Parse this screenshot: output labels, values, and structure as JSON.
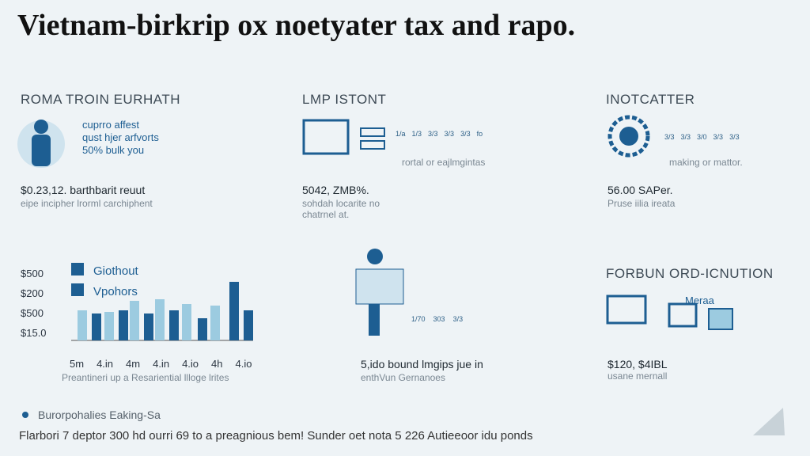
{
  "header": {
    "title": "Vietnam-birkrip ox noetyater tax and rapo."
  },
  "panels": [
    {
      "heading": "ROMA TROIN EURHATH",
      "lines": [
        "cuprro affest",
        "qust hjer arfvorts",
        "50% bulk you"
      ],
      "stat": "$0.23,12. barthbarit reuut",
      "sub": "eipe incipher lrorml carchiphent"
    },
    {
      "heading": "LMP ISTONT",
      "tags": [
        "1/a",
        "1/3",
        "3/3",
        "3/3",
        "3/3",
        "fo"
      ],
      "caption": "rortal or eajlmgintas",
      "stat": "5042, ZMB%.",
      "sub": "sohdah locarite no chatrnel at."
    },
    {
      "heading": "INOTCATTER",
      "tags": [
        "3/3",
        "3/3",
        "3/0",
        "3/3",
        "3/3"
      ],
      "caption": "making or mattor.",
      "stat": "56.00 SAPer.",
      "sub": "Pruse iilia ireata"
    },
    {
      "legend": [
        "Giothout",
        "Vpohors"
      ],
      "ylabels": [
        "$500",
        "$200",
        "$500",
        "$15.0"
      ],
      "xlabels": [
        "5m",
        "4.in",
        "4m",
        "4.in",
        "4.io",
        "4h",
        "4.io"
      ],
      "caption": "Preantineri up a Resariential llloge lrites"
    },
    {
      "tags": [
        "1/70",
        "303",
        "3/3"
      ],
      "stat": "5,ido bound lmgips jue in",
      "sub": "enthVun Gernanoes"
    },
    {
      "heading": "FORBUN ORD-ICNUTION",
      "badge": "Meraa",
      "stat": "$120, $4IBL",
      "sub": "usane mernall"
    }
  ],
  "footer": {
    "bullet": "Burorpohalies Eaking-Sa",
    "text": "Flarbori 7 deptor 300 hd ourri 69 to a preagnious bem! Sunder oet nota 5 226 Autieeoor idu ponds"
  }
}
